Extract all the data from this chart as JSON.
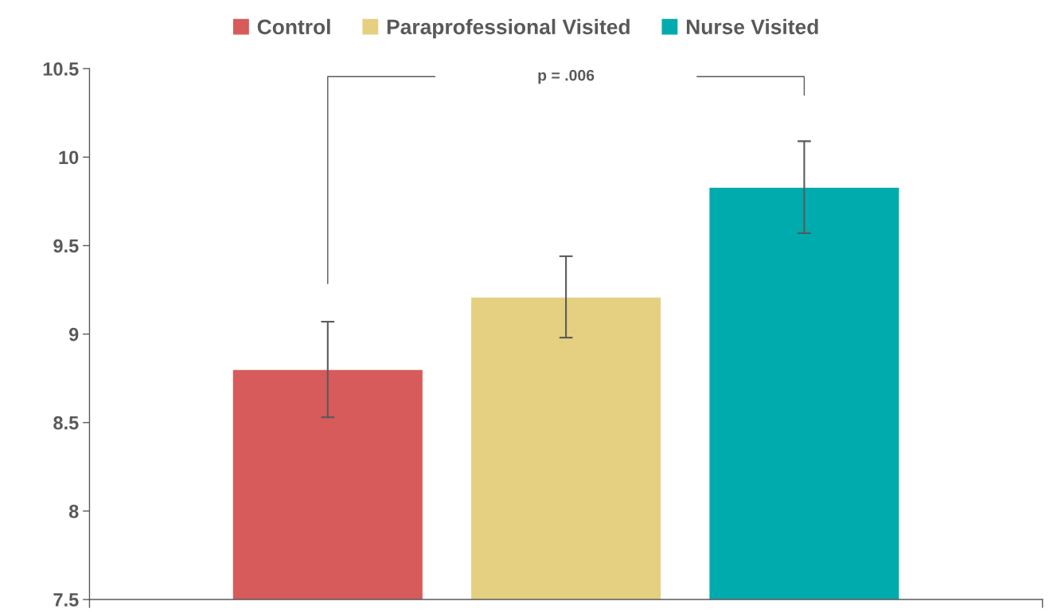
{
  "chart_data": {
    "type": "bar",
    "categories": [
      null
    ],
    "series": [
      {
        "name": "Control",
        "color": "#d65b5a",
        "values": [
          8.8
        ],
        "errors": [
          0.27
        ]
      },
      {
        "name": "Paraprofessional Visited",
        "color": "#e5d081",
        "values": [
          9.21
        ],
        "errors": [
          0.23
        ]
      },
      {
        "name": "Nurse Visited",
        "color": "#00abae",
        "values": [
          9.83
        ],
        "errors": [
          0.26
        ]
      }
    ],
    "ylim": [
      7.5,
      10.5
    ],
    "yticks": [
      7.5,
      8,
      8.5,
      9,
      9.5,
      10,
      10.5
    ],
    "annotations": [
      "p = .006"
    ],
    "grid": false,
    "legend": "top"
  }
}
